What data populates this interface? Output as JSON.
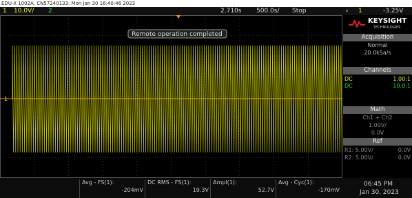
{
  "file_info": "EDU-X 1002A, CN57240133: Mon Jan 30 16:40:46 2023",
  "header": {
    "ch1_number": "1",
    "ch1_scale": "10.0V/",
    "ch2_number": "2",
    "time_position": "2.710s",
    "time_scale": "500.0s/",
    "run_state": "Stop",
    "trigger_channel": "1",
    "trigger_level": "-3.25V"
  },
  "screen": {
    "message": "Remote operation completed",
    "ground_marker": "1"
  },
  "side_panel": {
    "brand": "KEYSIGHT",
    "brand_sub": "TECHNOLOGIES",
    "acquisition": {
      "title": "Acquisition",
      "mode": "Normal",
      "rate": "20.0kSa/s"
    },
    "channels": {
      "title": "Channels",
      "rows": [
        [
          "DC",
          "1.00:1"
        ],
        [
          "DC",
          "10.0:1"
        ]
      ]
    },
    "math": {
      "title": "Math",
      "function": "Ch1 + Ch2",
      "scale": "1.00V/",
      "offset": "0.0V"
    },
    "ref": {
      "title": "Ref",
      "rows": [
        [
          "R1: 5.00V/",
          "0.0V"
        ],
        [
          "R2: 5.00V/",
          "0.0V"
        ]
      ]
    }
  },
  "measurements": [
    {
      "label": "Avg - FS(1):",
      "value": "-204mV"
    },
    {
      "label": "DC RMS - FS(1):",
      "value": "19.3V"
    },
    {
      "label": "Ampl(1):",
      "value": "52.7V"
    },
    {
      "label": "Avg - Cyc(1):",
      "value": "-170mV"
    }
  ],
  "clock": {
    "time": "06:45 PM",
    "date": "Jan 30, 2023"
  }
}
